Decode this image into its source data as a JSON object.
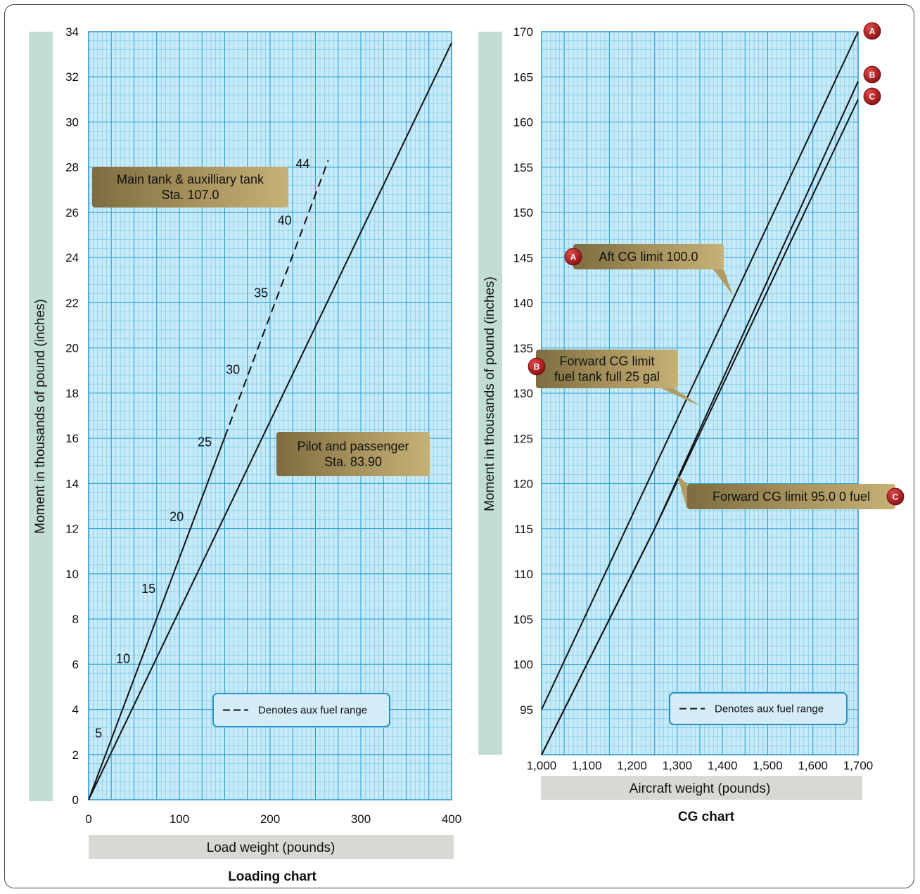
{
  "chart_data": [
    {
      "type": "line",
      "title": "Loading chart",
      "xlabel": "Load weight (pounds)",
      "ylabel": "Moment in thousands of pound (inches)",
      "xlim": [
        0,
        400
      ],
      "ylim": [
        0,
        34
      ],
      "x_ticks": [
        "0",
        "100",
        "200",
        "300",
        "400"
      ],
      "y_ticks": [
        "0",
        "2",
        "4",
        "6",
        "8",
        "10",
        "12",
        "14",
        "16",
        "18",
        "20",
        "22",
        "24",
        "26",
        "28",
        "30",
        "32",
        "34"
      ],
      "series": [
        {
          "name": "Pilot and passenger Sta. 83.90",
          "label_lines": [
            "Pilot and passenger",
            "Sta. 83.90"
          ],
          "style": "solid",
          "points": [
            [
              0,
              0
            ],
            [
              400,
              33.5
            ]
          ]
        },
        {
          "name": "Main tank & auxilliary tank Sta. 107.0",
          "label_lines": [
            "Main tank & auxilliary tank",
            "Sta. 107.0"
          ],
          "style": "solid",
          "points": [
            [
              0,
              0
            ],
            [
              150,
              16.05
            ]
          ]
        },
        {
          "name": "Aux fuel range",
          "style": "dashed",
          "points": [
            [
              150,
              16.05
            ],
            [
              264,
              28.3
            ]
          ]
        }
      ],
      "gallon_labels": [
        {
          "text": "5",
          "x": 11,
          "y": 2.9
        },
        {
          "text": "10",
          "x": 38,
          "y": 6.2
        },
        {
          "text": "15",
          "x": 66,
          "y": 9.3
        },
        {
          "text": "20",
          "x": 97,
          "y": 12.5
        },
        {
          "text": "25",
          "x": 128,
          "y": 15.8
        },
        {
          "text": "30",
          "x": 159,
          "y": 19.0
        },
        {
          "text": "35",
          "x": 190,
          "y": 22.4
        },
        {
          "text": "40",
          "x": 216,
          "y": 25.6
        },
        {
          "text": "44",
          "x": 236,
          "y": 28.1
        }
      ],
      "legend_text": "Denotes aux fuel range",
      "legend_position": "bottom-right"
    },
    {
      "type": "line",
      "title": "CG chart",
      "xlabel": "Aircraft weight (pounds)",
      "ylabel": "Moment in thousands of pound (inches)",
      "xlim": [
        1000,
        1700
      ],
      "ylim": [
        90,
        170
      ],
      "x_ticks": [
        "1,000",
        "1,100",
        "1,200",
        "1,300",
        "1,400",
        "1,500",
        "1,600",
        "1,700"
      ],
      "y_ticks": [
        "95",
        "100",
        "105",
        "110",
        "115",
        "120",
        "125",
        "130",
        "135",
        "140",
        "145",
        "150",
        "155",
        "160",
        "165",
        "170"
      ],
      "series": [
        {
          "name": "Aft CG limit 100.0",
          "label_lines": [
            "Aft CG limit 100.0"
          ],
          "badge": "A",
          "style": "solid",
          "points": [
            [
              1000,
              95
            ],
            [
              1700,
              170
            ]
          ]
        },
        {
          "name": "Forward CG limit fuel tank full 25 gal",
          "label_lines": [
            "Forward CG limit",
            "fuel tank full 25 gal"
          ],
          "badge": "B",
          "style": "solid",
          "points": [
            [
              1000,
              90
            ],
            [
              1250,
              115
            ],
            [
              1700,
              164.5
            ]
          ]
        },
        {
          "name": "Forward CG limit 95.0 0 fuel",
          "label_lines": [
            "Forward CG limit 95.0  0 fuel"
          ],
          "badge": "C",
          "style": "solid",
          "points": [
            [
              1000,
              90
            ],
            [
              1250,
              115
            ],
            [
              1700,
              162.5
            ]
          ]
        }
      ],
      "legend_text": "Denotes aux fuel range",
      "legend_position": "bottom-right"
    }
  ]
}
